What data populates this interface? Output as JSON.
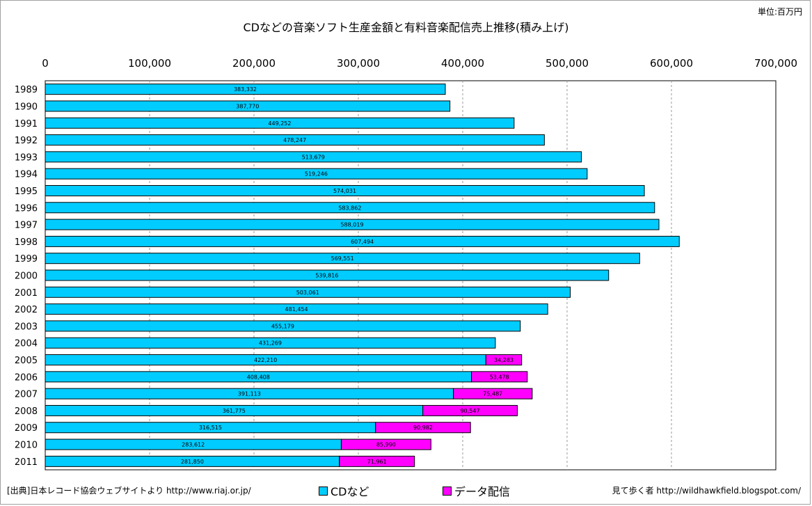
{
  "unit_label": "単位:百万円",
  "footer": {
    "source": "[出典]日本レコード協会ウェブサイトより http://www.riaj.or.jp/",
    "credit": "見て歩く者 http://wildhawkfield.blogspot.com/"
  },
  "chart_data": {
    "type": "bar",
    "orientation": "horizontal",
    "stacked": true,
    "title": "CDなどの音楽ソフト生産金額と有料音楽配信売上推移(積み上げ)",
    "xlim": [
      0,
      700000
    ],
    "x_ticks": [
      "0",
      "100,000",
      "200,000",
      "300,000",
      "400,000",
      "500,000",
      "600,000",
      "700,000"
    ],
    "x_tick_values": [
      0,
      100000,
      200000,
      300000,
      400000,
      500000,
      600000,
      700000
    ],
    "grid": "vertical dashed",
    "legend_position": "bottom",
    "categories": [
      "1989",
      "1990",
      "1991",
      "1992",
      "1993",
      "1994",
      "1995",
      "1996",
      "1997",
      "1998",
      "1999",
      "2000",
      "2001",
      "2002",
      "2003",
      "2004",
      "2005",
      "2006",
      "2007",
      "2008",
      "2009",
      "2010",
      "2011"
    ],
    "series": [
      {
        "name": "CDなど",
        "color": "#00ccff",
        "values": [
          383332,
          387770,
          449252,
          478247,
          513679,
          519246,
          574031,
          583862,
          588019,
          607494,
          569551,
          539816,
          503061,
          481454,
          455179,
          431269,
          422210,
          408408,
          391113,
          361775,
          316515,
          283612,
          281850
        ],
        "labels": [
          "383,332",
          "387,770",
          "449,252",
          "478,247",
          "513,679",
          "519,246",
          "574,031",
          "583,862",
          "588,019",
          "607,494",
          "569,551",
          "539,816",
          "503,061",
          "481,454",
          "455,179",
          "431,269",
          "422,210",
          "408,408",
          "391,113",
          "361,775",
          "316,515",
          "283,612",
          "281,850"
        ]
      },
      {
        "name": "データ配信",
        "color": "#ff00ff",
        "values": [
          null,
          null,
          null,
          null,
          null,
          null,
          null,
          null,
          null,
          null,
          null,
          null,
          null,
          null,
          null,
          null,
          34283,
          53478,
          75487,
          90547,
          90982,
          85990,
          71961
        ],
        "labels": [
          "",
          "",
          "",
          "",
          "",
          "",
          "",
          "",
          "",
          "",
          "",
          "",
          "",
          "",
          "",
          "",
          "34,283",
          "53,478",
          "75,487",
          "90,547",
          "90,982",
          "85,990",
          "71,961"
        ]
      }
    ]
  }
}
